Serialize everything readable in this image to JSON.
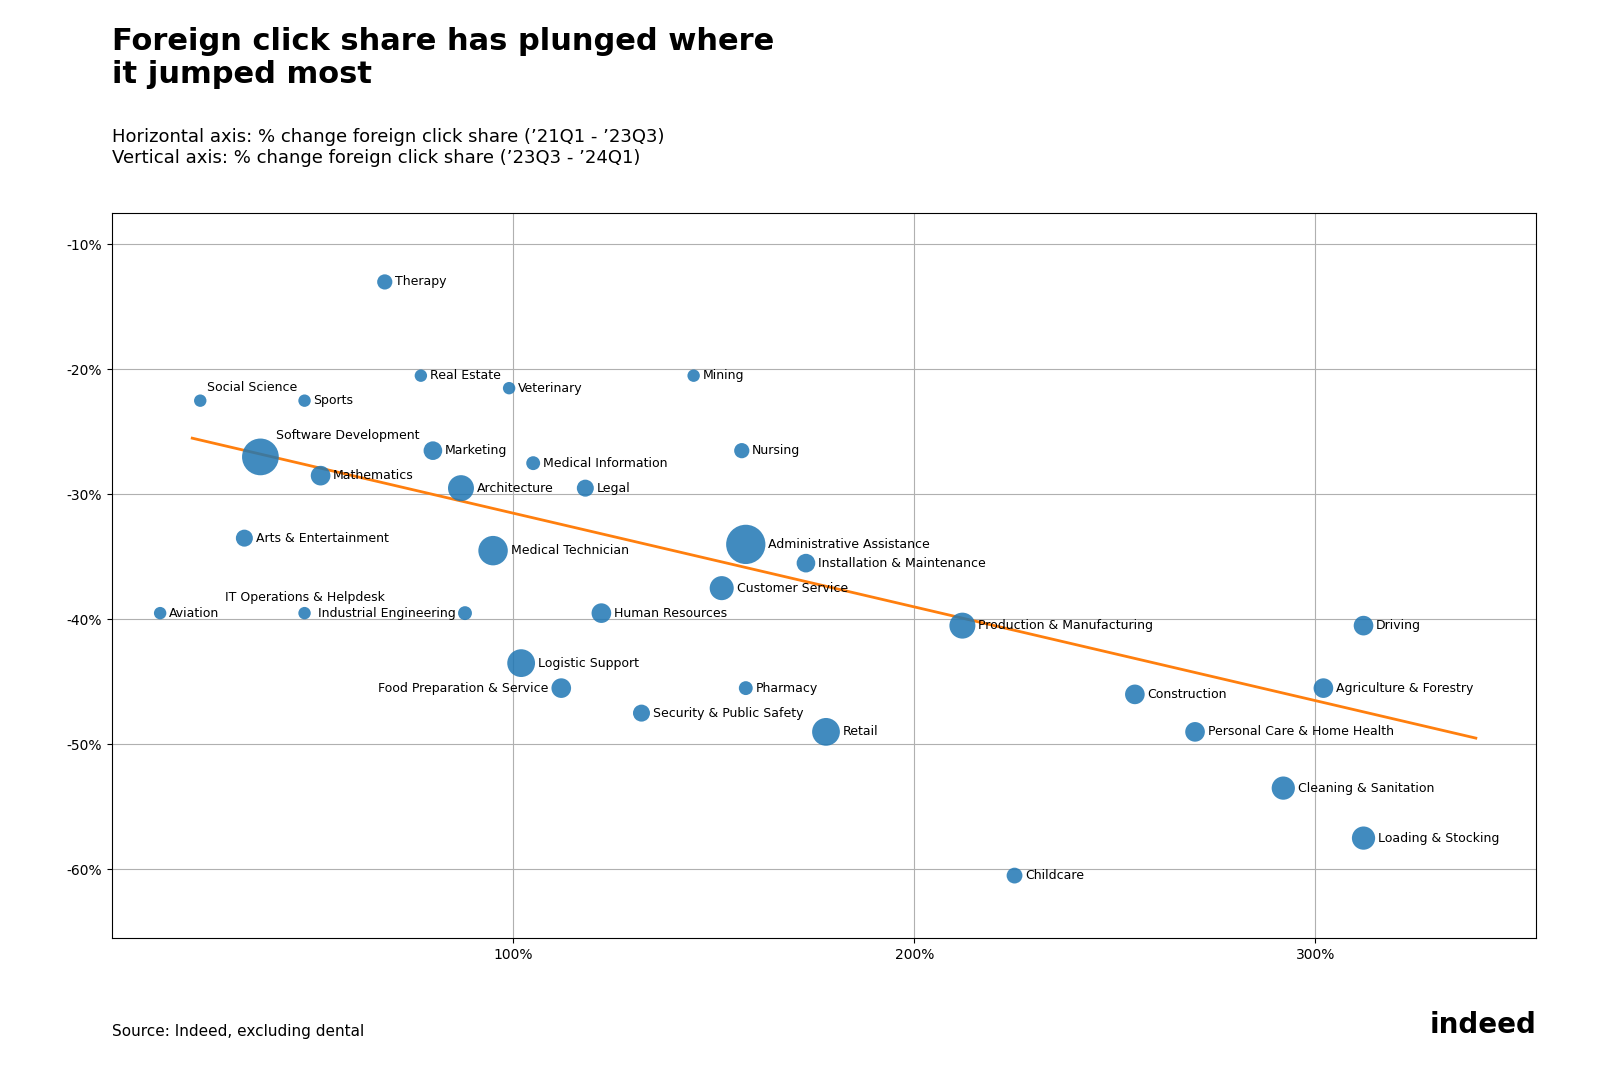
{
  "chart_data": {
    "type": "scatter",
    "title": "Foreign click share has plunged where\nit jumped most",
    "subtitle": "Horizontal axis: % change foreign click share (’21Q1 - ’23Q3)\nVertical axis: % change foreign click share (’23Q3 - ’24Q1)",
    "source": "Source: Indeed, excluding dental",
    "annotations": [
      "indeed"
    ],
    "labels": [
      "Therapy",
      "Social Science",
      "Sports",
      "Software Development",
      "Mathematics",
      "Marketing",
      "Medical Information",
      "Real Estate",
      "Veterinary",
      "Mining",
      "Nursing",
      "Architecture",
      "Legal",
      "Arts & Entertainment",
      "Medical Technician",
      "Administrative Assistance",
      "Customer Service",
      "Installation & Maintenance",
      "Aviation",
      "IT Operations & Helpdesk",
      "Industrial Engineering",
      "Human Resources",
      "Production & Manufacturing",
      "Logistic Support",
      "Food Preparation & Service",
      "Security & Public Safety",
      "Pharmacy",
      "Retail",
      "Construction",
      "Personal Care & Home Health",
      "Agriculture & Forestry",
      "Driving",
      "Cleaning & Sanitation",
      "Loading & Stocking",
      "Childcare"
    ],
    "x": [
      0.68,
      0.22,
      0.48,
      0.37,
      0.52,
      0.8,
      1.05,
      0.77,
      0.99,
      1.45,
      1.57,
      0.87,
      1.18,
      0.33,
      0.95,
      1.58,
      1.52,
      1.73,
      0.12,
      0.48,
      0.88,
      1.22,
      2.12,
      1.02,
      1.12,
      1.32,
      1.58,
      1.78,
      2.55,
      2.7,
      3.02,
      3.12,
      2.92,
      3.12,
      2.25
    ],
    "y": [
      -0.13,
      -0.225,
      -0.225,
      -0.27,
      -0.285,
      -0.265,
      -0.275,
      -0.205,
      -0.215,
      -0.205,
      -0.265,
      -0.295,
      -0.295,
      -0.335,
      -0.345,
      -0.34,
      -0.375,
      -0.355,
      -0.395,
      -0.395,
      -0.395,
      -0.395,
      -0.405,
      -0.435,
      -0.455,
      -0.475,
      -0.455,
      -0.49,
      -0.46,
      -0.49,
      -0.455,
      -0.405,
      -0.535,
      -0.575,
      -0.605
    ],
    "sizes": [
      120,
      80,
      80,
      700,
      200,
      180,
      100,
      80,
      80,
      80,
      120,
      350,
      150,
      150,
      450,
      800,
      300,
      180,
      80,
      80,
      100,
      200,
      350,
      400,
      200,
      150,
      100,
      400,
      200,
      200,
      200,
      200,
      280,
      280,
      130
    ],
    "trendline": {
      "x": [
        0.2,
        3.4
      ],
      "y": [
        -0.255,
        -0.495
      ]
    },
    "xlim": [
      0.0,
      3.55
    ],
    "ylim": [
      -0.655,
      -0.075
    ],
    "xticks": [
      {
        "value": 1.0,
        "label": "100%"
      },
      {
        "value": 2.0,
        "label": "200%"
      },
      {
        "value": 3.0,
        "label": "300%"
      }
    ],
    "yticks": [
      {
        "value": -0.1,
        "label": "-10%"
      },
      {
        "value": -0.2,
        "label": "-20%"
      },
      {
        "value": -0.3,
        "label": "-30%"
      },
      {
        "value": -0.4,
        "label": "-40%"
      },
      {
        "value": -0.5,
        "label": "-50%"
      },
      {
        "value": -0.6,
        "label": "-60%"
      }
    ],
    "grid": true
  }
}
